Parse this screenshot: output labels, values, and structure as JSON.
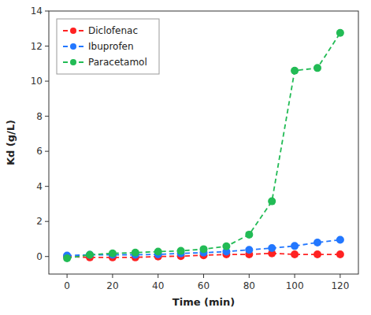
{
  "chart_data": {
    "type": "line",
    "xlabel": "Time (min)",
    "ylabel": "Kd (g/L)",
    "xlim": [
      -8,
      128
    ],
    "ylim": [
      -1,
      14
    ],
    "xticks": [
      0,
      20,
      40,
      60,
      80,
      100,
      120
    ],
    "yticks": [
      0,
      2,
      4,
      6,
      8,
      10,
      12,
      14
    ],
    "x": [
      0,
      10,
      20,
      30,
      40,
      50,
      60,
      70,
      80,
      90,
      100,
      110,
      120
    ],
    "series": [
      {
        "name": "Diclofenac",
        "color": "#FF2222",
        "values": [
          0.0,
          -0.05,
          -0.05,
          -0.05,
          0.0,
          0.02,
          0.07,
          0.12,
          0.12,
          0.18,
          0.12,
          0.12,
          0.12
        ]
      },
      {
        "name": "Ibuprofen",
        "color": "#2277FF",
        "values": [
          0.05,
          0.1,
          0.1,
          0.1,
          0.12,
          0.18,
          0.22,
          0.28,
          0.38,
          0.48,
          0.6,
          0.8,
          0.95
        ]
      },
      {
        "name": "Paracetamol",
        "color": "#22BB55",
        "values": [
          -0.1,
          0.1,
          0.18,
          0.22,
          0.28,
          0.32,
          0.42,
          0.58,
          1.25,
          3.15,
          10.6,
          10.75,
          12.75
        ]
      }
    ],
    "marker": "circle",
    "line_style": "dashed",
    "legend": "upper left",
    "grid": false
  }
}
